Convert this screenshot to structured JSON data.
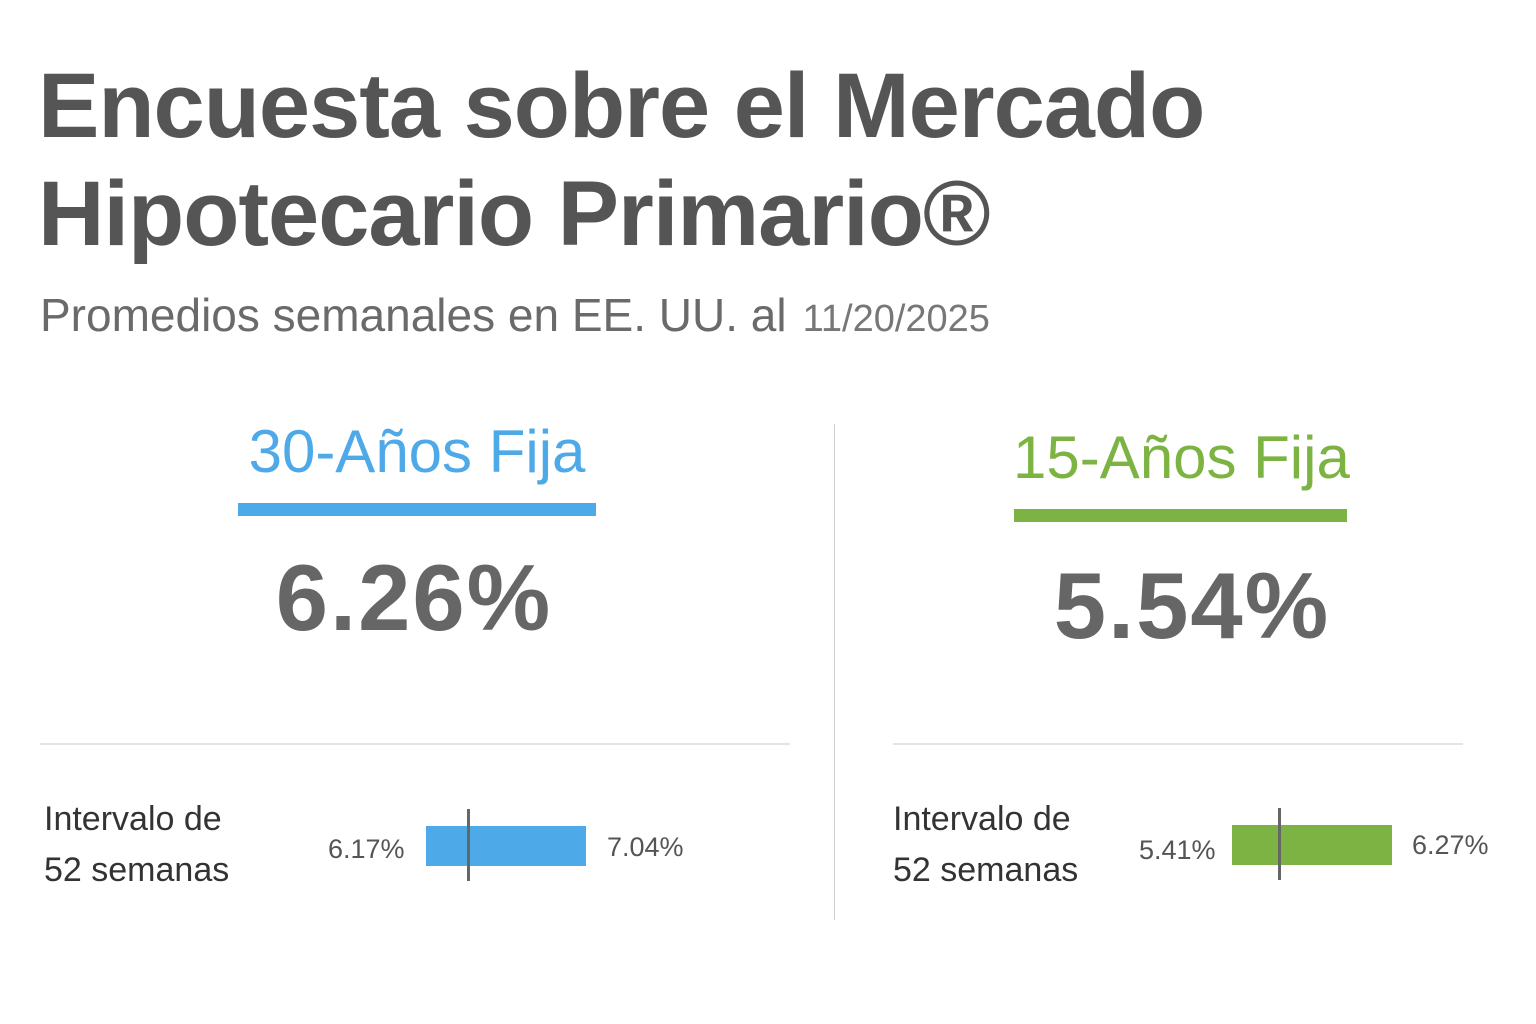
{
  "header": {
    "title_line1": "Encuesta sobre el Mercado",
    "title_line2": "Hipotecario Primario®",
    "subtitle": "Promedios semanales en EE. UU. al",
    "date": "11/20/2025"
  },
  "colors": {
    "blue": "#4ea9e8",
    "green": "#7db342",
    "text": "#555555"
  },
  "panels": [
    {
      "heading": "30-Años Fija",
      "rate": "6.26%",
      "range_label_line1": "Intervalo de",
      "range_label_line2": "52 semanas",
      "range_min": "6.17%",
      "range_max": "7.04%",
      "current_value": 6.26,
      "low_value": 6.17,
      "high_value": 7.04
    },
    {
      "heading": "15-Años Fija",
      "rate": "5.54%",
      "range_label_line1": "Intervalo de",
      "range_label_line2": "52 semanas",
      "range_min": "5.41%",
      "range_max": "6.27%",
      "current_value": 5.54,
      "low_value": 5.41,
      "high_value": 6.27
    }
  ]
}
